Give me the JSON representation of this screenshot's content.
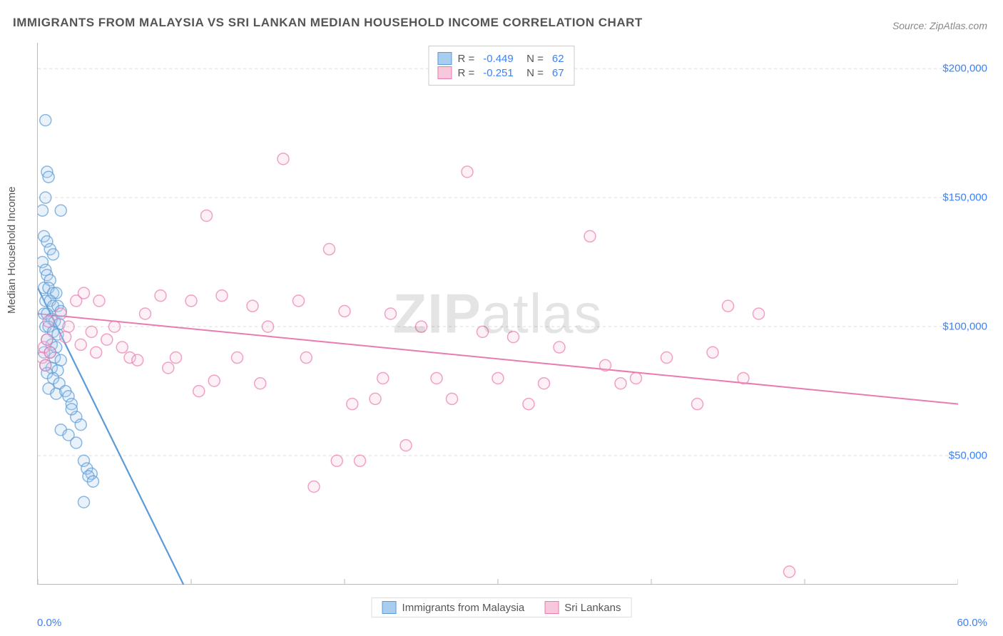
{
  "title": "IMMIGRANTS FROM MALAYSIA VS SRI LANKAN MEDIAN HOUSEHOLD INCOME CORRELATION CHART",
  "source": "Source: ZipAtlas.com",
  "watermark_bold": "ZIP",
  "watermark_rest": "atlas",
  "y_axis_label": "Median Household Income",
  "chart": {
    "type": "scatter",
    "background_color": "#ffffff",
    "grid_color": "#dddddd",
    "grid_dash": "4,4",
    "axis_color": "#bbbbbb",
    "xlim": [
      0,
      60
    ],
    "ylim": [
      0,
      210000
    ],
    "x_ticks": [
      {
        "pos": 0,
        "label": "0.0%"
      },
      {
        "pos": 10,
        "label": ""
      },
      {
        "pos": 20,
        "label": ""
      },
      {
        "pos": 30,
        "label": ""
      },
      {
        "pos": 40,
        "label": ""
      },
      {
        "pos": 50,
        "label": ""
      },
      {
        "pos": 60,
        "label": "60.0%"
      }
    ],
    "y_ticks": [
      {
        "pos": 50000,
        "label": "$50,000"
      },
      {
        "pos": 100000,
        "label": "$100,000"
      },
      {
        "pos": 150000,
        "label": "$150,000"
      },
      {
        "pos": 200000,
        "label": "$200,000"
      }
    ],
    "marker_radius": 8,
    "marker_stroke_width": 1.5,
    "marker_fill_opacity": 0.25,
    "series": [
      {
        "name": "Immigrants from Malaysia",
        "color": "#5b9bd5",
        "fill": "#a9cdef",
        "r_value": "-0.449",
        "n_value": "62",
        "trend": {
          "x1": 0,
          "y1": 115000,
          "x2": 9.5,
          "y2": 0,
          "width": 2.2
        },
        "points": [
          [
            0.5,
            180000
          ],
          [
            0.6,
            160000
          ],
          [
            0.7,
            158000
          ],
          [
            0.5,
            150000
          ],
          [
            0.3,
            145000
          ],
          [
            1.5,
            145000
          ],
          [
            0.4,
            135000
          ],
          [
            0.6,
            133000
          ],
          [
            0.8,
            130000
          ],
          [
            1.0,
            128000
          ],
          [
            0.3,
            125000
          ],
          [
            0.5,
            122000
          ],
          [
            0.6,
            120000
          ],
          [
            0.8,
            118000
          ],
          [
            0.4,
            115000
          ],
          [
            0.7,
            115000
          ],
          [
            1.0,
            113000
          ],
          [
            1.2,
            113000
          ],
          [
            0.5,
            110000
          ],
          [
            0.8,
            110000
          ],
          [
            1.0,
            108000
          ],
          [
            1.3,
            108000
          ],
          [
            1.5,
            106000
          ],
          [
            0.4,
            105000
          ],
          [
            0.6,
            105000
          ],
          [
            0.9,
            103000
          ],
          [
            1.1,
            102000
          ],
          [
            1.4,
            101000
          ],
          [
            0.5,
            100000
          ],
          [
            0.7,
            100000
          ],
          [
            1.0,
            98000
          ],
          [
            1.3,
            97000
          ],
          [
            0.6,
            95000
          ],
          [
            0.9,
            93000
          ],
          [
            1.2,
            92000
          ],
          [
            0.4,
            90000
          ],
          [
            0.8,
            90000
          ],
          [
            1.1,
            88000
          ],
          [
            1.5,
            87000
          ],
          [
            0.5,
            85000
          ],
          [
            0.9,
            84000
          ],
          [
            1.3,
            83000
          ],
          [
            0.6,
            82000
          ],
          [
            1.0,
            80000
          ],
          [
            1.4,
            78000
          ],
          [
            0.7,
            76000
          ],
          [
            1.2,
            74000
          ],
          [
            1.8,
            75000
          ],
          [
            2.0,
            73000
          ],
          [
            2.2,
            70000
          ],
          [
            2.5,
            65000
          ],
          [
            2.8,
            62000
          ],
          [
            1.5,
            60000
          ],
          [
            2.0,
            58000
          ],
          [
            2.5,
            55000
          ],
          [
            3.0,
            48000
          ],
          [
            3.2,
            45000
          ],
          [
            3.5,
            43000
          ],
          [
            3.3,
            42000
          ],
          [
            3.6,
            40000
          ],
          [
            3.0,
            32000
          ],
          [
            2.2,
            68000
          ]
        ]
      },
      {
        "name": "Sri Lankans",
        "color": "#e97bb0",
        "fill": "#f7c8dc",
        "r_value": "-0.251",
        "n_value": "67",
        "trend": {
          "x1": 0,
          "y1": 105000,
          "x2": 60,
          "y2": 70000,
          "width": 2
        },
        "points": [
          [
            0.3,
            88000
          ],
          [
            0.5,
            85000
          ],
          [
            0.4,
            92000
          ],
          [
            0.6,
            95000
          ],
          [
            0.8,
            90000
          ],
          [
            1.5,
            105000
          ],
          [
            2.0,
            100000
          ],
          [
            2.5,
            110000
          ],
          [
            3.0,
            113000
          ],
          [
            3.5,
            98000
          ],
          [
            4.0,
            110000
          ],
          [
            4.5,
            95000
          ],
          [
            5.0,
            100000
          ],
          [
            5.5,
            92000
          ],
          [
            6.0,
            88000
          ],
          [
            7.0,
            105000
          ],
          [
            8.0,
            112000
          ],
          [
            9.0,
            88000
          ],
          [
            10.0,
            110000
          ],
          [
            10.5,
            75000
          ],
          [
            11.0,
            143000
          ],
          [
            12.0,
            112000
          ],
          [
            13.0,
            88000
          ],
          [
            14.0,
            108000
          ],
          [
            14.5,
            78000
          ],
          [
            15.0,
            100000
          ],
          [
            16.0,
            165000
          ],
          [
            17.0,
            110000
          ],
          [
            17.5,
            88000
          ],
          [
            18.0,
            38000
          ],
          [
            19.0,
            130000
          ],
          [
            19.5,
            48000
          ],
          [
            20.0,
            106000
          ],
          [
            20.5,
            70000
          ],
          [
            21.0,
            48000
          ],
          [
            22.0,
            72000
          ],
          [
            22.5,
            80000
          ],
          [
            23.0,
            105000
          ],
          [
            24.0,
            54000
          ],
          [
            25.0,
            100000
          ],
          [
            26.0,
            80000
          ],
          [
            27.0,
            72000
          ],
          [
            28.0,
            160000
          ],
          [
            29.0,
            98000
          ],
          [
            30.0,
            80000
          ],
          [
            31.0,
            96000
          ],
          [
            32.0,
            70000
          ],
          [
            33.0,
            78000
          ],
          [
            34.0,
            92000
          ],
          [
            36.0,
            135000
          ],
          [
            37.0,
            85000
          ],
          [
            38.0,
            78000
          ],
          [
            39.0,
            80000
          ],
          [
            41.0,
            88000
          ],
          [
            43.0,
            70000
          ],
          [
            44.0,
            90000
          ],
          [
            45.0,
            108000
          ],
          [
            46.0,
            80000
          ],
          [
            47.0,
            105000
          ],
          [
            49.0,
            5000
          ],
          [
            0.7,
            102000
          ],
          [
            1.8,
            96000
          ],
          [
            2.8,
            93000
          ],
          [
            3.8,
            90000
          ],
          [
            6.5,
            87000
          ],
          [
            8.5,
            84000
          ],
          [
            11.5,
            79000
          ]
        ]
      }
    ]
  },
  "legend_bottom": [
    {
      "label": "Immigrants from Malaysia",
      "color": "#5b9bd5",
      "fill": "#a9cdef"
    },
    {
      "label": "Sri Lankans",
      "color": "#e97bb0",
      "fill": "#f7c8dc"
    }
  ],
  "tick_label_color": "#3b82f6",
  "text_color": "#555555",
  "title_fontsize": 17,
  "label_fontsize": 15
}
